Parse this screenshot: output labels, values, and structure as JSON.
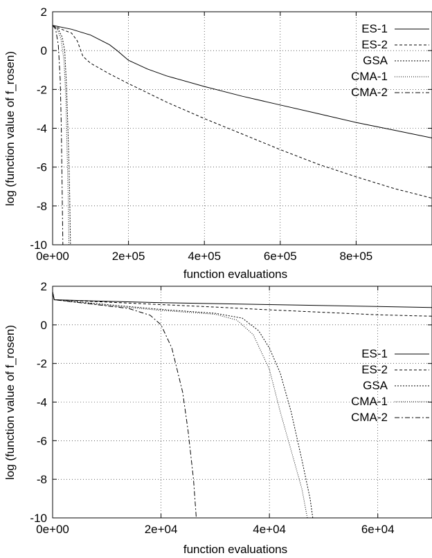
{
  "chart_data": [
    {
      "type": "line",
      "xlabel": "function evaluations",
      "ylabel": "log (function value of f_rosen)",
      "xlim": [
        0,
        1000000
      ],
      "ylim": [
        -10,
        2
      ],
      "xticks": [
        0,
        200000,
        400000,
        600000,
        800000
      ],
      "xtick_labels": [
        "0e+00",
        "2e+05",
        "4e+05",
        "6e+05",
        "8e+05"
      ],
      "yticks": [
        -10,
        -8,
        -6,
        -4,
        -2,
        0,
        2
      ],
      "ytick_labels": [
        "-10",
        "-8",
        "-6",
        "-4",
        "-2",
        "0",
        "2"
      ],
      "grid": true,
      "legend_position": "top-right",
      "series": [
        {
          "name": "ES-1",
          "color": "#000000",
          "dash": "",
          "width": 1.0,
          "points": [
            [
              0,
              1.3
            ],
            [
              50000,
              1.1
            ],
            [
              100000,
              0.8
            ],
            [
              130000,
              0.5
            ],
            [
              150000,
              0.3
            ],
            [
              170000,
              0.0
            ],
            [
              200000,
              -0.5
            ],
            [
              250000,
              -0.95
            ],
            [
              300000,
              -1.3
            ],
            [
              400000,
              -1.85
            ],
            [
              500000,
              -2.35
            ],
            [
              600000,
              -2.8
            ],
            [
              700000,
              -3.25
            ],
            [
              800000,
              -3.7
            ],
            [
              900000,
              -4.1
            ],
            [
              1000000,
              -4.5
            ]
          ]
        },
        {
          "name": "ES-2",
          "color": "#000000",
          "dash": "4,3",
          "width": 1.0,
          "points": [
            [
              0,
              1.3
            ],
            [
              30000,
              1.05
            ],
            [
              50000,
              0.9
            ],
            [
              65000,
              0.5
            ],
            [
              80000,
              -0.3
            ],
            [
              100000,
              -0.65
            ],
            [
              150000,
              -1.2
            ],
            [
              200000,
              -1.7
            ],
            [
              300000,
              -2.65
            ],
            [
              400000,
              -3.5
            ],
            [
              500000,
              -4.3
            ],
            [
              600000,
              -5.1
            ],
            [
              700000,
              -5.85
            ],
            [
              800000,
              -6.5
            ],
            [
              900000,
              -7.1
            ],
            [
              1000000,
              -7.6
            ]
          ]
        },
        {
          "name": "GSA",
          "color": "#000000",
          "dash": "2,2",
          "width": 1.0,
          "points": [
            [
              0,
              1.3
            ],
            [
              15000,
              1.1
            ],
            [
              25000,
              0.7
            ],
            [
              32000,
              0.0
            ],
            [
              37000,
              -2.0
            ],
            [
              42000,
              -5.0
            ],
            [
              45000,
              -7.5
            ],
            [
              47000,
              -10
            ]
          ]
        },
        {
          "name": "CMA-1",
          "color": "#000000",
          "dash": "1,2",
          "width": 1.0,
          "points": [
            [
              0,
              1.3
            ],
            [
              12000,
              1.1
            ],
            [
              22000,
              0.6
            ],
            [
              30000,
              -0.5
            ],
            [
              35000,
              -2.5
            ],
            [
              38000,
              -5.0
            ],
            [
              41000,
              -7.5
            ],
            [
              43000,
              -10
            ]
          ]
        },
        {
          "name": "CMA-2",
          "color": "#000000",
          "dash": "7,3,2,3",
          "width": 1.0,
          "points": [
            [
              0,
              1.3
            ],
            [
              8000,
              1.1
            ],
            [
              15000,
              0.3
            ],
            [
              20000,
              -1.5
            ],
            [
              23000,
              -4.0
            ],
            [
              25000,
              -7.0
            ],
            [
              27000,
              -10
            ]
          ]
        }
      ]
    },
    {
      "type": "line",
      "xlabel": "function evaluations",
      "ylabel": "log (function value of f_rosen)",
      "xlim": [
        0,
        70000
      ],
      "ylim": [
        -10,
        2
      ],
      "xticks": [
        0,
        20000,
        40000,
        60000
      ],
      "xtick_labels": [
        "0e+00",
        "2e+04",
        "4e+04",
        "6e+04"
      ],
      "yticks": [
        -10,
        -8,
        -6,
        -4,
        -2,
        0,
        2
      ],
      "ytick_labels": [
        "-10",
        "-8",
        "-6",
        "-4",
        "-2",
        "0",
        "2"
      ],
      "grid": true,
      "legend_position": "middle-right",
      "series": [
        {
          "name": "ES-1",
          "color": "#000000",
          "dash": "",
          "width": 1.0,
          "points": [
            [
              0,
              1.7
            ],
            [
              300,
              1.3
            ],
            [
              10000,
              1.22
            ],
            [
              20000,
              1.15
            ],
            [
              30000,
              1.1
            ],
            [
              40000,
              1.05
            ],
            [
              50000,
              1.0
            ],
            [
              60000,
              0.95
            ],
            [
              70000,
              0.9
            ]
          ]
        },
        {
          "name": "ES-2",
          "color": "#000000",
          "dash": "4,3",
          "width": 1.0,
          "points": [
            [
              0,
              1.7
            ],
            [
              300,
              1.3
            ],
            [
              10000,
              1.18
            ],
            [
              20000,
              1.05
            ],
            [
              30000,
              0.92
            ],
            [
              40000,
              0.78
            ],
            [
              50000,
              0.65
            ],
            [
              60000,
              0.52
            ],
            [
              70000,
              0.45
            ]
          ]
        },
        {
          "name": "GSA",
          "color": "#000000",
          "dash": "2,2",
          "width": 1.0,
          "points": [
            [
              0,
              1.7
            ],
            [
              300,
              1.3
            ],
            [
              10000,
              1.05
            ],
            [
              20000,
              0.8
            ],
            [
              30000,
              0.6
            ],
            [
              35000,
              0.35
            ],
            [
              38000,
              -0.3
            ],
            [
              40000,
              -1.2
            ],
            [
              42000,
              -2.5
            ],
            [
              44000,
              -4.5
            ],
            [
              46000,
              -7.0
            ],
            [
              47500,
              -9.0
            ],
            [
              48000,
              -10
            ]
          ]
        },
        {
          "name": "CMA-1",
          "color": "#000000",
          "dash": "1,2",
          "width": 1.0,
          "points": [
            [
              0,
              1.7
            ],
            [
              300,
              1.3
            ],
            [
              10000,
              1.0
            ],
            [
              20000,
              0.75
            ],
            [
              30000,
              0.55
            ],
            [
              34000,
              0.25
            ],
            [
              37000,
              -0.5
            ],
            [
              40000,
              -2.3
            ],
            [
              42000,
              -4.5
            ],
            [
              44000,
              -6.5
            ],
            [
              46000,
              -8.5
            ],
            [
              47000,
              -10
            ]
          ]
        },
        {
          "name": "CMA-2",
          "color": "#000000",
          "dash": "7,3,2,3",
          "width": 1.0,
          "points": [
            [
              0,
              1.7
            ],
            [
              300,
              1.3
            ],
            [
              8000,
              1.05
            ],
            [
              14000,
              0.85
            ],
            [
              18000,
              0.5
            ],
            [
              20000,
              0.0
            ],
            [
              22000,
              -1.2
            ],
            [
              24000,
              -3.5
            ],
            [
              25000,
              -5.5
            ],
            [
              26000,
              -8.0
            ],
            [
              26500,
              -10
            ]
          ]
        }
      ]
    }
  ]
}
